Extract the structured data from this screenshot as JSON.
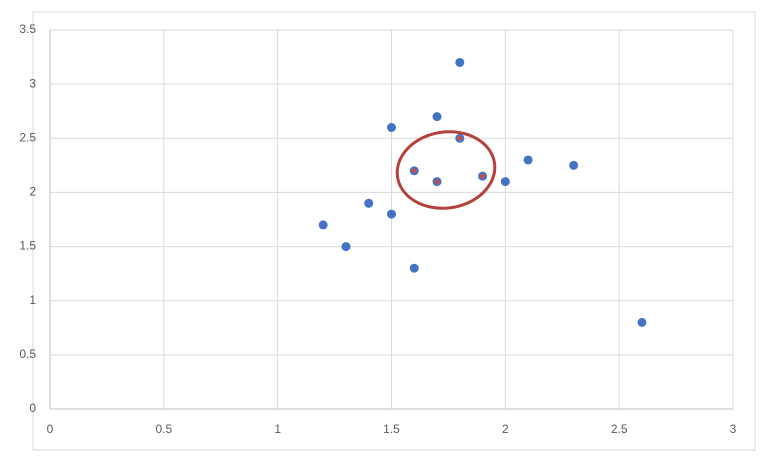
{
  "chart_data": {
    "type": "scatter",
    "series": [
      {
        "color": "#4472c4",
        "x": [
          1.2,
          1.3,
          1.4,
          1.5,
          1.5,
          1.6,
          1.7,
          1.8,
          2.0,
          2.1,
          2.3,
          2.6
        ],
        "values": [
          1.7,
          1.5,
          1.9,
          2.6,
          1.8,
          1.3,
          2.7,
          3.2,
          2.1,
          2.3,
          2.25,
          0.8
        ]
      },
      {
        "color": "#c0504d",
        "edge": "#4472c4",
        "x": [
          1.6,
          1.7,
          1.8,
          1.9
        ],
        "values": [
          2.2,
          2.1,
          2.5,
          2.15
        ]
      }
    ],
    "xlim": [
      0,
      3
    ],
    "ylim": [
      0,
      3.5
    ],
    "xticks": [
      0,
      0.5,
      1,
      1.5,
      2,
      2.5,
      3
    ],
    "yticks": [
      0,
      0.5,
      1,
      1.5,
      2,
      2.5,
      3,
      3.5
    ],
    "grid": true
  }
}
